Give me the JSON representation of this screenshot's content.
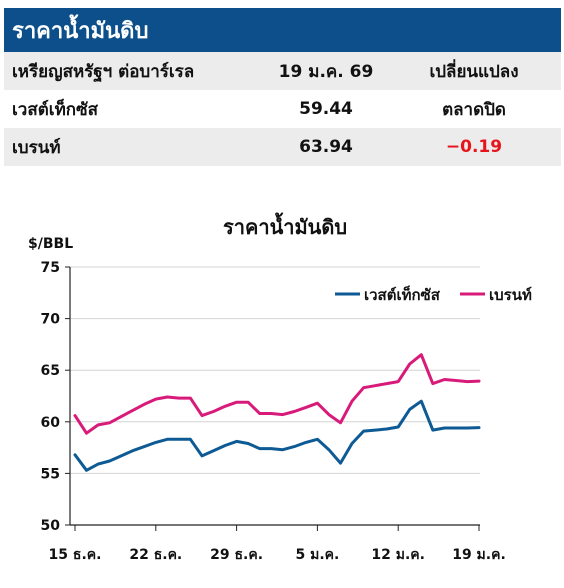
{
  "table": {
    "title": "ราคาน้ำมันดิบ",
    "header": {
      "label": "เหรียญสหรัฐฯ ต่อบาร์เรล",
      "date": "19 ม.ค. 69",
      "change": "เปลี่ยนแปลง"
    },
    "rows": [
      {
        "name": "เวสต์เท็กซัส",
        "price": "59.44",
        "change": "ตลาดปิด",
        "change_color": "#111111"
      },
      {
        "name": "เบรนท์",
        "price": "63.94",
        "change": "−0.19",
        "change_color": "#e8141c"
      }
    ]
  },
  "chart_data": {
    "type": "line",
    "title": "ราคาน้ำมันดิบ",
    "ylabel": "$/BBL",
    "xlabel": "",
    "ylim": [
      50,
      75
    ],
    "yticks": [
      50,
      55,
      60,
      65,
      70,
      75
    ],
    "x_tick_labels": [
      "15 ธ.ค.",
      "22 ธ.ค.",
      "29 ธ.ค.",
      "5 ม.ค.",
      "12 ม.ค.",
      "19 ม.ค."
    ],
    "x_tick_index": [
      0,
      7,
      14,
      21,
      28,
      35
    ],
    "x": [
      "15 ธ.ค.",
      "16 ธ.ค.",
      "17 ธ.ค.",
      "18 ธ.ค.",
      "19 ธ.ค.",
      "20 ธ.ค.",
      "21 ธ.ค.",
      "22 ธ.ค.",
      "23 ธ.ค.",
      "24 ธ.ค.",
      "25 ธ.ค.",
      "26 ธ.ค.",
      "27 ธ.ค.",
      "28 ธ.ค.",
      "29 ธ.ค.",
      "30 ธ.ค.",
      "31 ธ.ค.",
      "1 ม.ค.",
      "2 ม.ค.",
      "3 ม.ค.",
      "4 ม.ค.",
      "5 ม.ค.",
      "6 ม.ค.",
      "7 ม.ค.",
      "8 ม.ค.",
      "9 ม.ค.",
      "10 ม.ค.",
      "11 ม.ค.",
      "12 ม.ค.",
      "13 ม.ค.",
      "14 ม.ค.",
      "15 ม.ค.",
      "16 ม.ค.",
      "17 ม.ค.",
      "18 ม.ค.",
      "19 ม.ค."
    ],
    "grid": "horizontal",
    "legend": "top-right",
    "series": [
      {
        "name": "เวสต์เท็กซัส",
        "color": "#0d5a94",
        "values": [
          56.8,
          55.3,
          55.9,
          56.2,
          56.7,
          57.2,
          57.6,
          58.0,
          58.3,
          58.3,
          58.3,
          56.7,
          57.2,
          57.7,
          58.1,
          57.9,
          57.4,
          57.4,
          57.3,
          57.6,
          58.0,
          58.3,
          57.3,
          56.0,
          57.9,
          59.1,
          59.2,
          59.3,
          59.5,
          61.2,
          62.0,
          59.2,
          59.4,
          59.4,
          59.4,
          59.44
        ]
      },
      {
        "name": "เบรนท์",
        "color": "#d81b7a",
        "values": [
          60.6,
          58.9,
          59.7,
          59.9,
          60.5,
          61.1,
          61.7,
          62.2,
          62.4,
          62.3,
          62.3,
          60.6,
          61.0,
          61.5,
          61.9,
          61.9,
          60.8,
          60.8,
          60.7,
          61.0,
          61.4,
          61.8,
          60.7,
          59.9,
          62.0,
          63.3,
          63.5,
          63.7,
          63.9,
          65.6,
          66.5,
          63.7,
          64.1,
          64.0,
          63.9,
          63.94
        ]
      }
    ]
  }
}
